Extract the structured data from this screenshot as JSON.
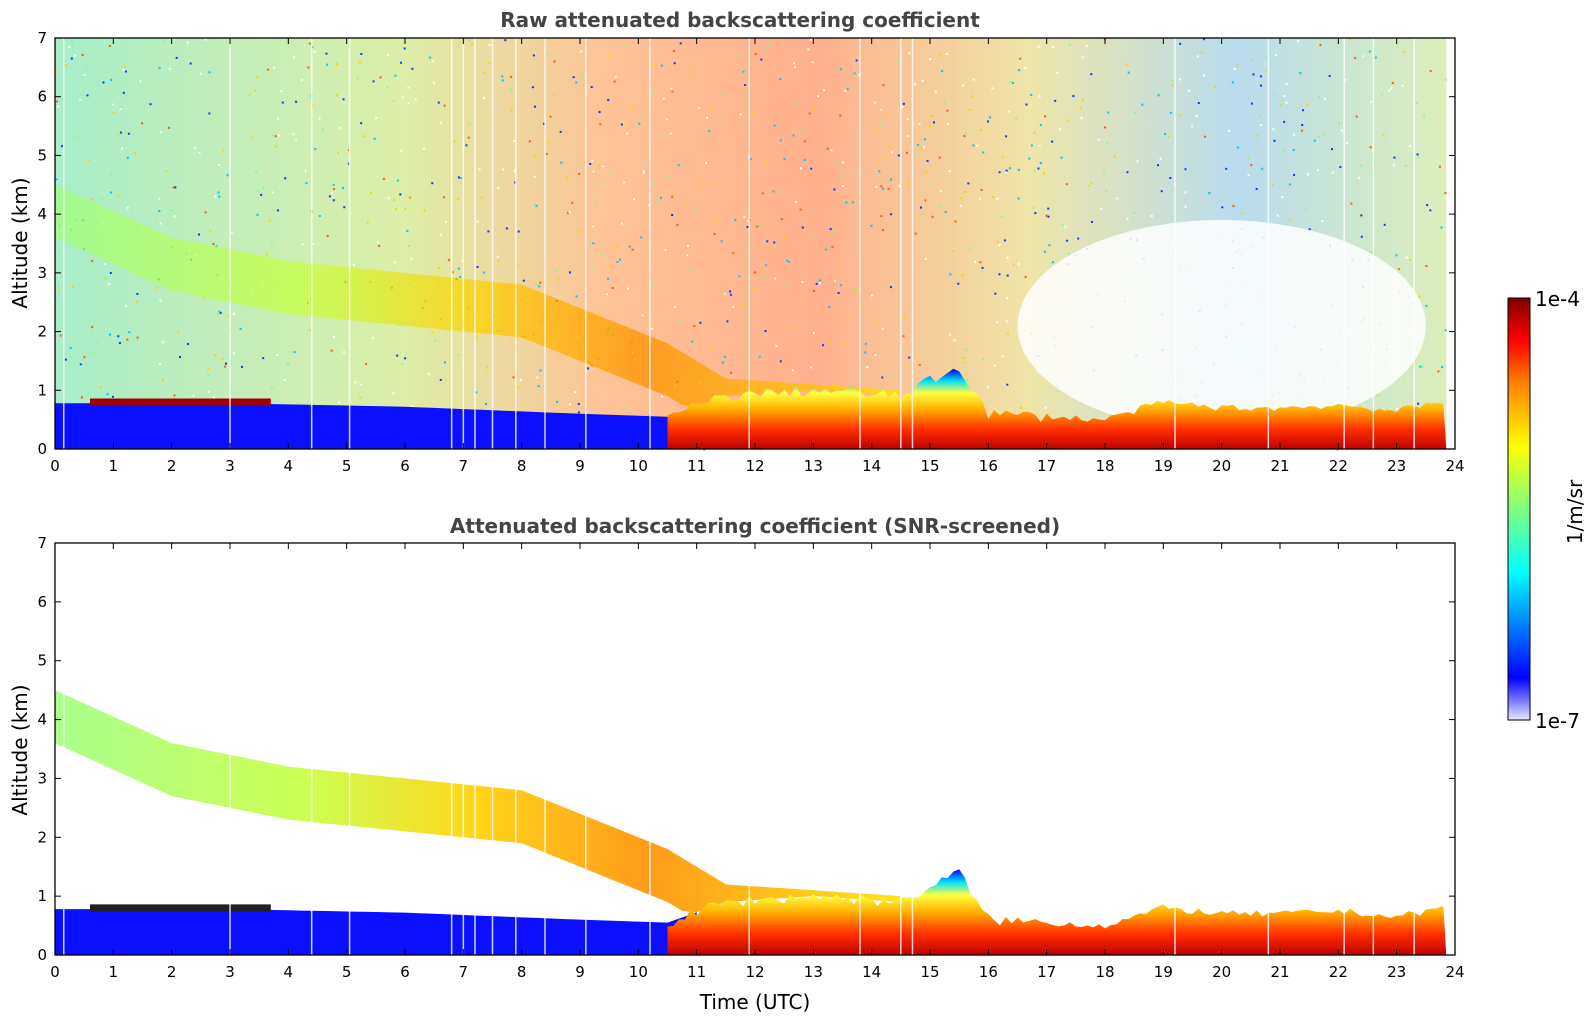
{
  "chart_data": [
    {
      "type": "heatmap",
      "title": "Raw attenuated backscattering coefficient",
      "xlabel": "",
      "ylabel": "Altitude (km)",
      "xlim": [
        0,
        24
      ],
      "ylim": [
        0,
        7
      ],
      "x_ticks": [
        "0",
        "1",
        "2",
        "3",
        "4",
        "5",
        "6",
        "7",
        "8",
        "9",
        "10",
        "11",
        "12",
        "13",
        "14",
        "15",
        "16",
        "17",
        "18",
        "19",
        "20",
        "21",
        "22",
        "23",
        "24"
      ],
      "y_ticks": [
        "0",
        "1",
        "2",
        "3",
        "4",
        "5",
        "6",
        "7"
      ],
      "features": {
        "boundary_layer_top_km": [
          [
            0,
            0.78
          ],
          [
            3,
            0.78
          ],
          [
            6,
            0.72
          ],
          [
            9,
            0.6
          ],
          [
            10.5,
            0.55
          ],
          [
            11.5,
            0.9
          ],
          [
            13,
            1.0
          ],
          [
            14.5,
            0.9
          ],
          [
            15.5,
            1.4
          ],
          [
            16,
            0.6
          ],
          [
            17,
            0.55
          ],
          [
            18,
            0.5
          ],
          [
            19,
            0.8
          ],
          [
            20,
            0.7
          ],
          [
            21,
            0.7
          ],
          [
            22,
            0.75
          ],
          [
            23,
            0.65
          ],
          [
            23.8,
            0.8
          ]
        ],
        "aerosol_layer_top_km": [
          [
            0,
            4.5
          ],
          [
            2,
            3.6
          ],
          [
            4,
            3.2
          ],
          [
            6,
            3.0
          ],
          [
            8,
            2.8
          ],
          [
            9.5,
            2.2
          ],
          [
            10.5,
            1.8
          ],
          [
            11.5,
            1.2
          ],
          [
            13,
            1.1
          ],
          [
            14.5,
            1.0
          ]
        ]
      }
    },
    {
      "type": "heatmap",
      "title": "Attenuated backscattering coefficient (SNR-screened)",
      "xlabel": "Time (UTC)",
      "ylabel": "Altitude (km)",
      "xlim": [
        0,
        24
      ],
      "ylim": [
        0,
        7
      ],
      "x_ticks": [
        "0",
        "1",
        "2",
        "3",
        "4",
        "5",
        "6",
        "7",
        "8",
        "9",
        "10",
        "11",
        "12",
        "13",
        "14",
        "15",
        "16",
        "17",
        "18",
        "19",
        "20",
        "21",
        "22",
        "23",
        "24"
      ],
      "y_ticks": [
        "0",
        "1",
        "2",
        "3",
        "4",
        "5",
        "6",
        "7"
      ]
    }
  ],
  "colorbar": {
    "label": "1/m/sr",
    "max_label": "1e-4",
    "min_label": "1e-7",
    "scale": "log",
    "colors": [
      "#e8e8ff",
      "#0000ff",
      "#00ffff",
      "#80ff80",
      "#ffff00",
      "#ff8000",
      "#ff0000",
      "#800000"
    ]
  }
}
